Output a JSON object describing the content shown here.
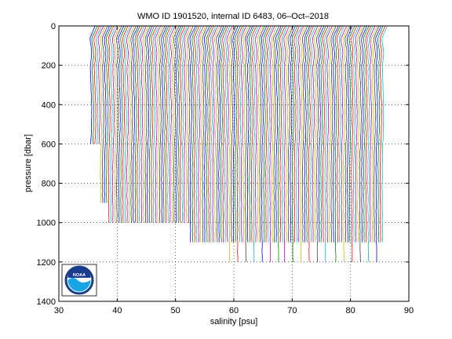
{
  "chart_data": {
    "type": "line",
    "title": "WMO ID 1901520, internal ID 6483, 06–Oct–2018",
    "xlabel": "salinity [psu]",
    "ylabel": "pressure [dbar]",
    "xlim": [
      30,
      90
    ],
    "ylim": [
      0,
      1400
    ],
    "y_reversed": true,
    "grid": true,
    "x_ticks": [
      "30",
      "40",
      "50",
      "60",
      "70",
      "80",
      "90"
    ],
    "y_ticks": [
      "0",
      "200",
      "400",
      "600",
      "800",
      "1000",
      "1200",
      "1400"
    ],
    "profile_offset_step": 0.35,
    "series_colors": [
      "#0000ff",
      "#008000",
      "#ff0000",
      "#00bfbf",
      "#bf00bf",
      "#bfbf00",
      "#404040"
    ],
    "profiles": {
      "count": 144,
      "base_salinity": 35.6,
      "max_pressure_by_index": [
        {
          "from": 0,
          "to": 4,
          "max_pressure": 600
        },
        {
          "from": 5,
          "to": 8,
          "max_pressure": 900
        },
        {
          "from": 9,
          "to": 48,
          "max_pressure": 1000
        },
        {
          "from": 49,
          "to": 64,
          "max_pressure": 1100
        },
        {
          "from": 65,
          "to": 143,
          "max_pressure": 1100
        }
      ],
      "deep_profile_indices": [
        68,
        72,
        76,
        80,
        84,
        88,
        92,
        95,
        99,
        103,
        107,
        111,
        115,
        120,
        124,
        128,
        132,
        136,
        140
      ],
      "deep_max_pressure": 1200
    }
  },
  "logo": {
    "text": "NOAA",
    "ring_color": "#1a3c8f",
    "wave_color": "#16a6e6"
  }
}
